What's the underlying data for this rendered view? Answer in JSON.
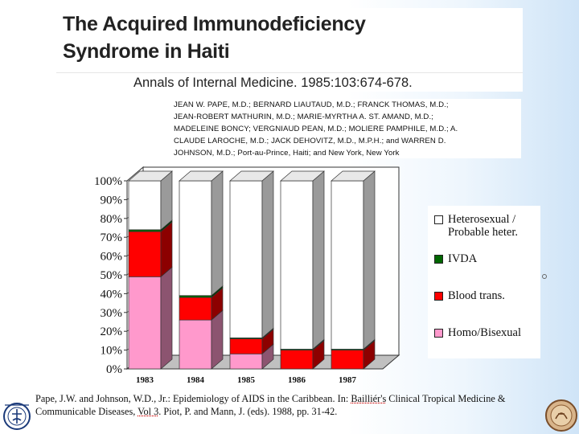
{
  "slide": {
    "title_line1": "The Acquired Immunodeficiency",
    "title_line2": "Syndrome in Haiti",
    "citation": "Annals of Internal Medicine. 1985:103:674-678.",
    "authors": [
      "JEAN  W.  PAPE,  M.D.;  BERNARD  LIAUTAUD,  M.D.;  FRANCK THOMAS,  M.D.;",
      "JEAN-ROBERT MATHURIN,  M.D.; MARIE-MYRTHA A.  ST.  AMAND,  M.D.;",
      "MADELEINE  BONCY;  VERGNIAUD  PEAN, M.D.;  MOLIERE  PAMPHILE,  M.D.;  A.",
      "CLAUDE LAROCHE,  M.D.;  JACK DEHOVITZ, M.D., M.P.H.; and WARREN  D.",
      "JOHNSON,  M.D.; Port-au-Prince,  Haiti; and  New York,  New York"
    ],
    "reference_part1": "Pape, J.W. and Johnson, W.D., Jr.: Epidemiology of AIDS in the Caribbean. In: ",
    "reference_underlined": "Bailliér's",
    "reference_part2": " Clinical Tropical Medicine & Communicable Diseases, ",
    "reference_vol": "Vol 3",
    "reference_part3": ". Piot, P. and Mann, J. (eds). 1988, pp. 31-42."
  },
  "chart_data": {
    "type": "bar",
    "stacked": true,
    "three_d": true,
    "categories": [
      "1983",
      "1984",
      "1985",
      "1986",
      "1987"
    ],
    "series": [
      {
        "name": "Homo/Bisexual",
        "color": "#ff99cc",
        "values": [
          49,
          26,
          8,
          0,
          0
        ]
      },
      {
        "name": "Blood trans.",
        "color": "#ff0000",
        "values": [
          24,
          12,
          8,
          10,
          10
        ]
      },
      {
        "name": "IVDA",
        "color": "#006600",
        "values": [
          1,
          1,
          0.5,
          0.5,
          0.5
        ]
      },
      {
        "name": "Heterosexual / Probable heter.",
        "color": "#ffffff",
        "values": [
          26,
          61,
          83.5,
          89.5,
          89.5
        ]
      }
    ],
    "y_ticks": [
      "0%",
      "10%",
      "20%",
      "30%",
      "40%",
      "50%",
      "60%",
      "70%",
      "80%",
      "90%",
      "100%"
    ],
    "ylim": [
      0,
      100
    ],
    "legend": [
      {
        "label": "Heterosexual / Probable heter.",
        "line1": "Heterosexual /",
        "line2": "Probable heter.",
        "color": "#ffffff"
      },
      {
        "label": "IVDA",
        "color": "#006600"
      },
      {
        "label": "Blood trans.",
        "color": "#ff0000"
      },
      {
        "label": "Homo/Bisexual",
        "color": "#ff99cc"
      }
    ],
    "legend_position": "right"
  }
}
